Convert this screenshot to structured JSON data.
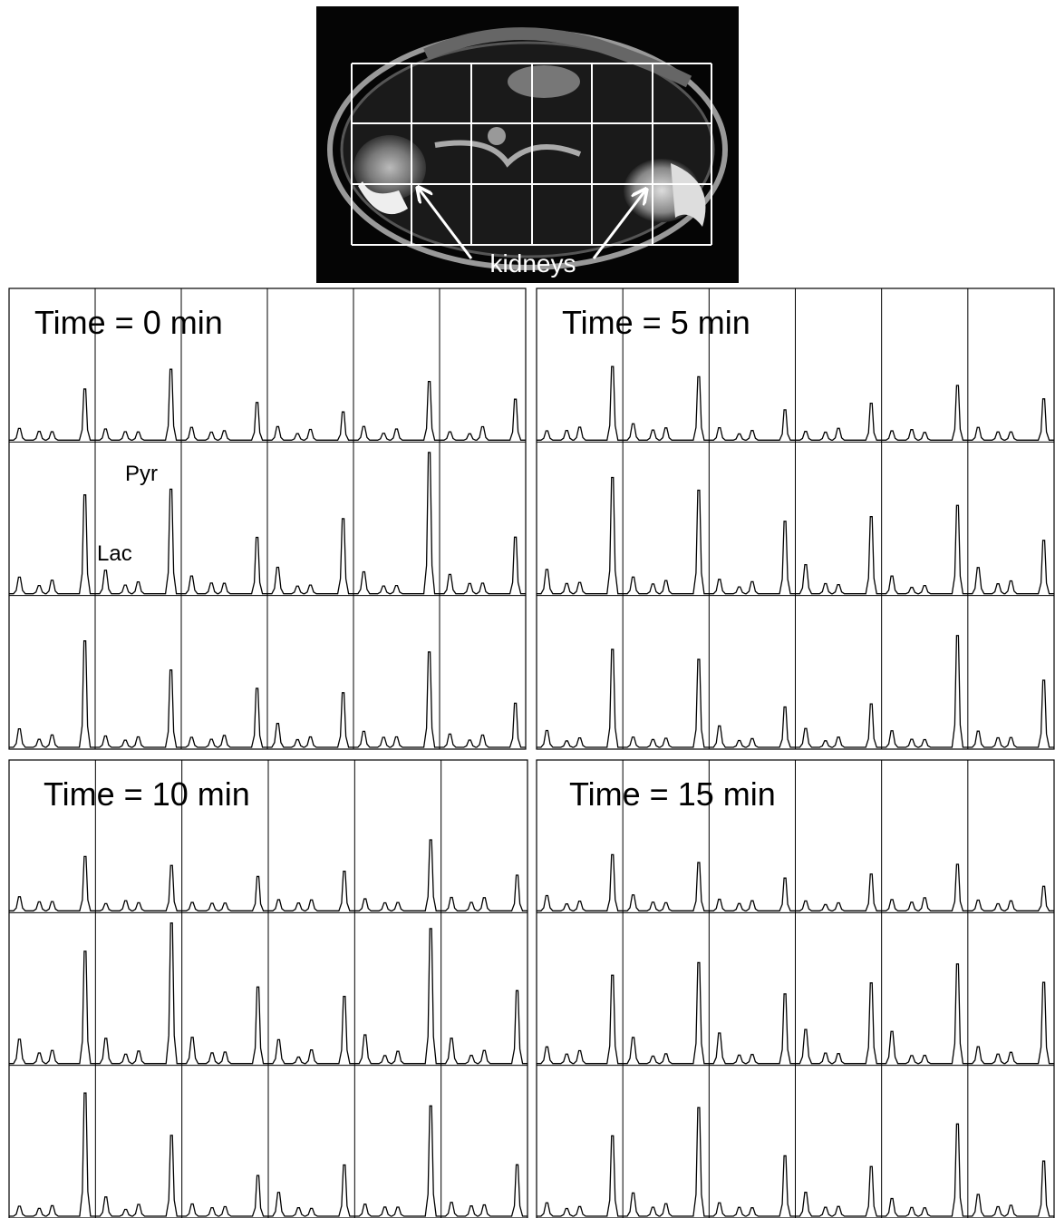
{
  "figure": {
    "image": {
      "label": "kidneys"
    },
    "panels": [
      {
        "title": "Time = 0 min"
      },
      {
        "title": "Time = 5 min"
      },
      {
        "title": "Time = 10 min"
      },
      {
        "title": "Time = 15 min"
      }
    ],
    "peak_labels": {
      "pyr": "Pyr",
      "lac": "Lac"
    }
  }
}
